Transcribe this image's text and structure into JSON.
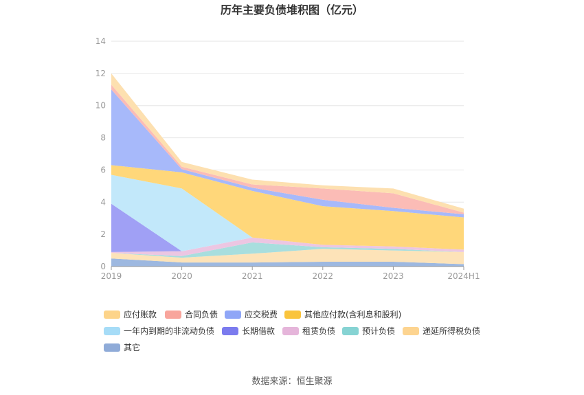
{
  "chart_data": {
    "type": "area",
    "stacked": true,
    "title": "历年主要负债堆积图（亿元）",
    "categories": [
      "2019",
      "2020",
      "2021",
      "2022",
      "2023",
      "2024H1"
    ],
    "ylim": [
      0,
      14
    ],
    "yticks": [
      0,
      2,
      4,
      6,
      8,
      10,
      12,
      14
    ],
    "grid": true,
    "legend_position": "bottom",
    "series": [
      {
        "name": "其它",
        "color": "#9db8e0",
        "values": [
          0.5,
          0.25,
          0.25,
          0.3,
          0.3,
          0.15
        ]
      },
      {
        "name": "递延所得税负债",
        "color": "#fde3b8",
        "values": [
          0.35,
          0.3,
          0.55,
          0.8,
          0.7,
          0.75
        ]
      },
      {
        "name": "预计负债",
        "color": "#a8dede",
        "values": [
          0.0,
          0.1,
          0.7,
          0.1,
          0.1,
          0.0
        ]
      },
      {
        "name": "租赁负债",
        "color": "#ecc6e2",
        "values": [
          0.05,
          0.3,
          0.3,
          0.15,
          0.15,
          0.15
        ]
      },
      {
        "name": "长期借款",
        "color": "#a0a0f5",
        "values": [
          3.0,
          0.0,
          0.0,
          0.0,
          0.0,
          0.0
        ]
      },
      {
        "name": "一年内到期的非流动负债",
        "color": "#c2e8fa",
        "values": [
          1.8,
          3.9,
          0.0,
          0.0,
          0.0,
          0.0
        ]
      },
      {
        "name": "其他应付款(含利息和股利)",
        "color": "#ffd77a",
        "values": [
          0.6,
          1.0,
          2.9,
          2.4,
          2.2,
          2.0
        ]
      },
      {
        "name": "应交税费",
        "color": "#a7b9fa",
        "values": [
          4.7,
          0.2,
          0.2,
          0.4,
          0.2,
          0.2
        ]
      },
      {
        "name": "合同负债",
        "color": "#fbbcb6",
        "values": [
          0.3,
          0.15,
          0.2,
          0.7,
          0.9,
          0.1
        ]
      },
      {
        "name": "应付账款",
        "color": "#fde0b0",
        "values": [
          0.7,
          0.3,
          0.3,
          0.2,
          0.3,
          0.25
        ]
      }
    ]
  },
  "legend": [
    {
      "name": "应付账款",
      "swatch": "#fdd48a"
    },
    {
      "name": "合同负债",
      "swatch": "#f8a59c"
    },
    {
      "name": "应交税费",
      "swatch": "#8fa6f7"
    },
    {
      "name": "其他应付款(含利息和股利)",
      "swatch": "#fac43c"
    },
    {
      "name": "一年内到期的非流动负债",
      "swatch": "#a6dcf7"
    },
    {
      "name": "长期借款",
      "swatch": "#7b7bee"
    },
    {
      "name": "租赁负债",
      "swatch": "#e5b5da"
    },
    {
      "name": "预计负债",
      "swatch": "#86d3d3"
    },
    {
      "name": "递延所得税负债",
      "swatch": "#fdd490"
    },
    {
      "name": "其它",
      "swatch": "#8fabd8"
    }
  ],
  "source": "数据来源：恒生聚源"
}
